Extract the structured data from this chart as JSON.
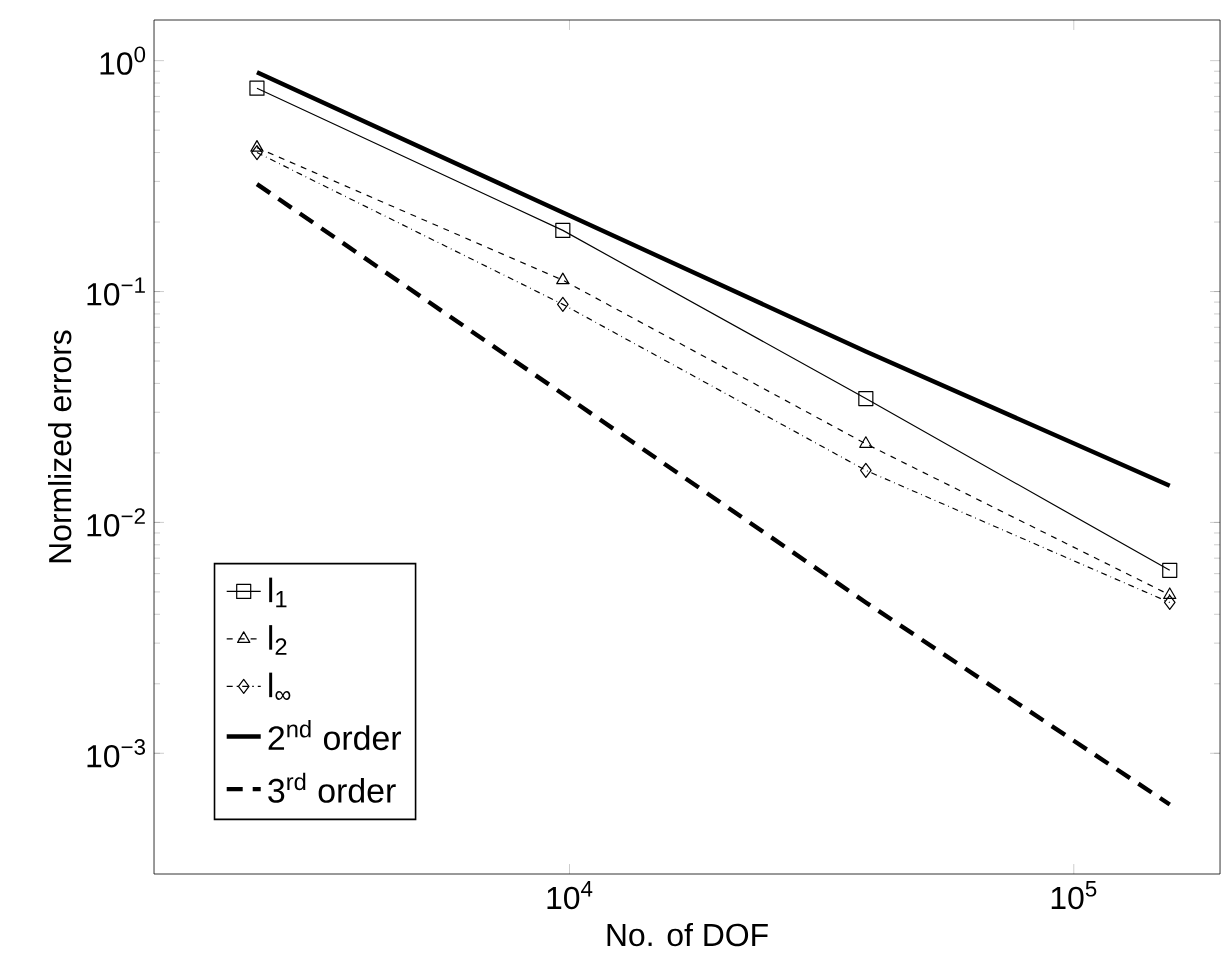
{
  "chart_data": {
    "type": "line",
    "xlabel": "No. of DOF",
    "ylabel": "Normlized errors",
    "log": "xy",
    "grid": false,
    "legend": "bottom left",
    "x": [
      2400,
      9700,
      38700,
      155000
    ],
    "xlim": [
      1500,
      195000
    ],
    "xticks": [
      {
        "value": 10000,
        "label": "10$^{4}$"
      },
      {
        "value": 100000,
        "label": "10$^{5}$"
      }
    ],
    "ylim": [
      0.0003,
      1.5
    ],
    "yticks": [
      {
        "value": 0.001,
        "label": "10$^{−3}$"
      },
      {
        "value": 0.01,
        "label": "10$^{−2}$"
      },
      {
        "value": 0.1,
        "label": "10$^{−1}$"
      },
      {
        "value": 1,
        "label": "10$^{0}$"
      }
    ],
    "series": [
      {
        "name": "l$_{1}$",
        "color": "#000000",
        "marker": "square",
        "line_style": "solid",
        "values": [
          0.76,
          0.184,
          0.0344,
          0.0062
        ]
      },
      {
        "name": "l$_{2}$",
        "color": "#000000",
        "marker": "triangle",
        "line_style": "dashed",
        "values": [
          0.42,
          0.112,
          0.0219,
          0.00485
        ]
      },
      {
        "name": "l$_{∞}$",
        "color": "#000000",
        "marker": "diamond",
        "line_style": "dashdot",
        "values": [
          0.4,
          0.088,
          0.0168,
          0.0045
        ]
      },
      {
        "name": "2$^{nd}$ order",
        "color": "#000000",
        "marker": "none",
        "line_style": "solid",
        "values": [
          0.89,
          0.22,
          0.055,
          0.0144
        ]
      },
      {
        "name": "3$^{rd}$ order",
        "color": "#000000",
        "marker": "none",
        "line_style": "dashed",
        "values": [
          0.292,
          0.036,
          0.0045,
          0.0006
        ]
      }
    ]
  }
}
